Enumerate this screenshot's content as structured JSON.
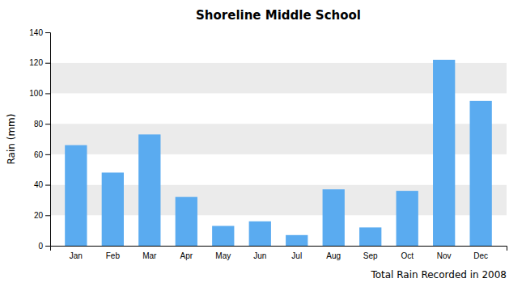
{
  "chart_data": {
    "type": "bar",
    "title": "Shoreline Middle School",
    "xlabel": "Total Rain Recorded in 2008",
    "ylabel": "Rain (mm)",
    "categories": [
      "Jan",
      "Feb",
      "Mar",
      "Apr",
      "May",
      "Jun",
      "Jul",
      "Aug",
      "Sep",
      "Oct",
      "Nov",
      "Dec"
    ],
    "values": [
      66,
      48,
      73,
      32,
      13,
      16,
      7,
      37,
      12,
      36,
      122,
      95
    ],
    "color": "#5aabf0",
    "ylim": [
      0,
      140
    ],
    "yticks": [
      0,
      20,
      40,
      60,
      80,
      100,
      120,
      140
    ],
    "grid": true
  }
}
